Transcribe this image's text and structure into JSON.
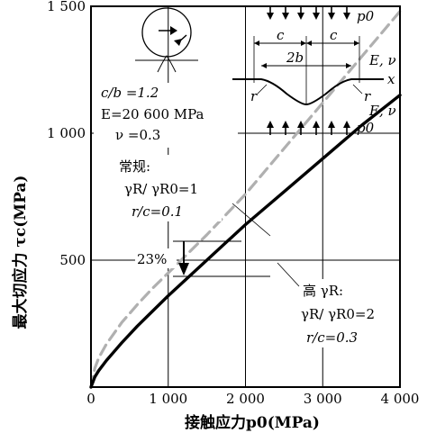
{
  "chart_data": {
    "type": "line",
    "xlabel": "接触应力p0(MPa)",
    "ylabel": "最大切应力 τc(MPa)",
    "xlim": [
      0,
      4000
    ],
    "ylim": [
      0,
      1500
    ],
    "x_ticks": [
      0,
      1000,
      2000,
      3000,
      4000
    ],
    "x_tick_labels": [
      "0",
      "1 000",
      "2 000",
      "3 000",
      "4 000"
    ],
    "y_ticks": [
      500,
      1000,
      1500
    ],
    "y_tick_labels": [
      "500",
      "1 000",
      "1 500"
    ],
    "grid": true,
    "x": [
      0,
      50,
      100,
      200,
      400,
      600,
      800,
      1000,
      1500,
      2000,
      2500,
      3000,
      3500,
      4000
    ],
    "series": [
      {
        "name": "常规",
        "style": "dashed",
        "color": "#b0b0b0",
        "values": [
          0,
          75,
          115,
          170,
          255,
          325,
          390,
          450,
          600,
          760,
          940,
          1120,
          1300,
          1480
        ]
      },
      {
        "name": "高 γR",
        "style": "solid",
        "color": "#000000",
        "values": [
          0,
          40,
          65,
          105,
          175,
          240,
          300,
          360,
          500,
          640,
          770,
          900,
          1030,
          1150
        ]
      }
    ],
    "annotations": {
      "params": {
        "cb": "c/b =1.2",
        "E": "E=20 600 MPa",
        "nu": "ν =0.3"
      },
      "conventional": {
        "title": "常规:",
        "ratio": "γR/ γR0=1",
        "rc": "r/c=0.1"
      },
      "high": {
        "title": "高 γR:",
        "ratio": "γR/ γR0=2",
        "rc": "r/c=0.3"
      },
      "reduction": "23%",
      "inset": {
        "p0_top": "p0",
        "p0_bottom": "p0",
        "c_left": "c",
        "c_right": "c",
        "two_b": "2b",
        "E_nu_top": "E, ν",
        "E_nu_bottom": "E, ν",
        "x_axis": "x",
        "r_left": "r",
        "r_right": "r"
      }
    }
  }
}
